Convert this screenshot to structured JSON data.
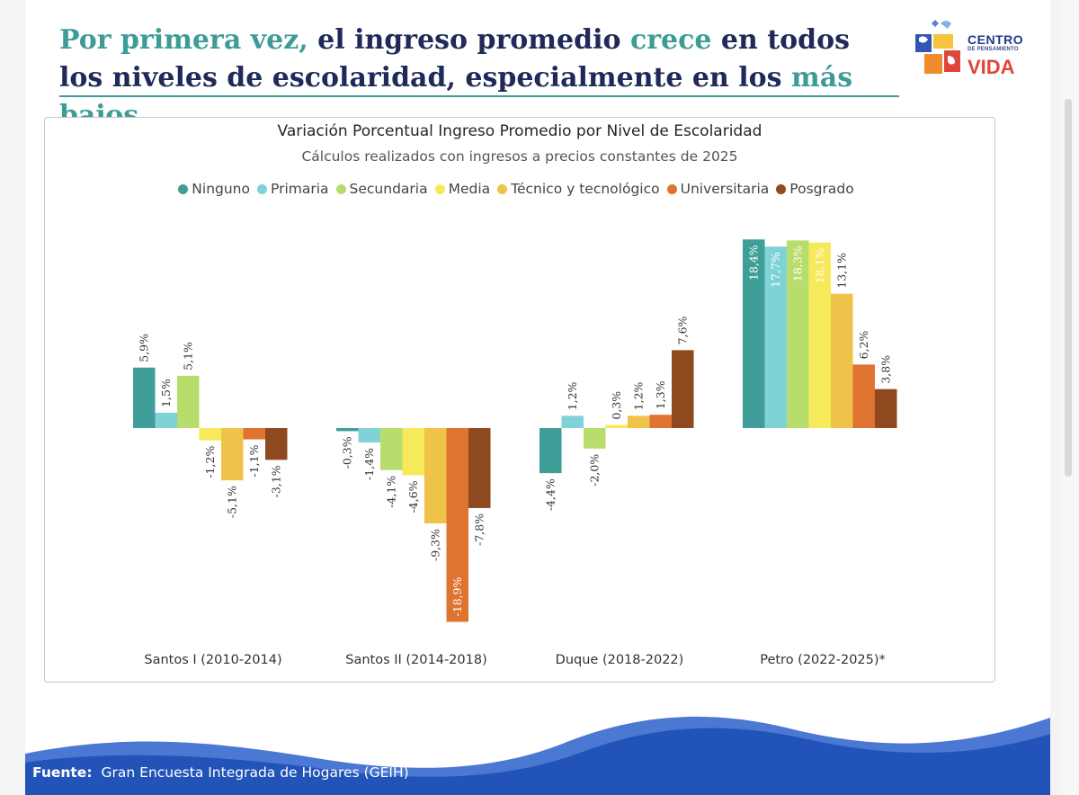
{
  "headline": {
    "part1": "Por primera vez,",
    "part2": " el ingreso promedio ",
    "part3": "crece",
    "part4": " en todos los niveles de escolaridad, especialmente en los ",
    "part5": "más bajos"
  },
  "logo": {
    "line1": "CENTRO",
    "line2": "DE PENSAMIENTO",
    "line3": "VIDA"
  },
  "source": {
    "label": "Fuente:",
    "text": "Gran Encuesta Integrada de Hogares (GEIH)"
  },
  "colors": {
    "headline": "#1f2a5a",
    "accent": "#3e9c97",
    "wave": "#2253b8"
  },
  "chart_data": {
    "type": "bar",
    "title": "Variación Porcentual Ingreso Promedio por Nivel de Escolaridad",
    "subtitle": "Cálculos realizados con ingresos a precios constantes de 2025",
    "legend_position": "top",
    "grid": false,
    "ylim": [
      -19,
      19
    ],
    "categories": [
      "Santos I (2010-2014)",
      "Santos II (2014-2018)",
      "Duque (2018-2022)",
      "Petro (2022-2025)*"
    ],
    "series": [
      {
        "name": "Ninguno",
        "color": "#3f9e98",
        "values": [
          5.9,
          -0.3,
          -4.4,
          18.4
        ],
        "labels": [
          "5,9%",
          "-0,3%",
          "-4,4%",
          "18,4%"
        ]
      },
      {
        "name": "Primaria",
        "color": "#7fd3d6",
        "values": [
          1.5,
          -1.4,
          1.2,
          17.7
        ],
        "labels": [
          "1,5%",
          "-1,4%",
          "1,2%",
          "17,7%"
        ]
      },
      {
        "name": "Secundaria",
        "color": "#b8dd6c",
        "values": [
          5.1,
          -4.1,
          -2.0,
          18.3
        ],
        "labels": [
          "5,1%",
          "-4,1%",
          "-2,0%",
          "18,3%"
        ]
      },
      {
        "name": "Media",
        "color": "#f6ea5a",
        "values": [
          -1.2,
          -4.6,
          0.3,
          18.1
        ],
        "labels": [
          "-1,2%",
          "-4,6%",
          "0,3%",
          "18,1%"
        ]
      },
      {
        "name": "Técnico y tecnológico",
        "color": "#efc34a",
        "values": [
          -5.1,
          -9.3,
          1.2,
          13.1
        ],
        "labels": [
          "-5,1%",
          "-9,3%",
          "1,2%",
          "13,1%"
        ]
      },
      {
        "name": "Universitaria",
        "color": "#de7430",
        "values": [
          -1.1,
          -18.9,
          1.3,
          6.2
        ],
        "labels": [
          "-1,1%",
          "-18,9%",
          "1,3%",
          "6,2%"
        ]
      },
      {
        "name": "Posgrado",
        "color": "#8e4a1e",
        "values": [
          -3.1,
          -7.8,
          7.6,
          3.8
        ],
        "labels": [
          "-3,1%",
          "-7,8%",
          "7,6%",
          "3,8%"
        ]
      }
    ]
  }
}
